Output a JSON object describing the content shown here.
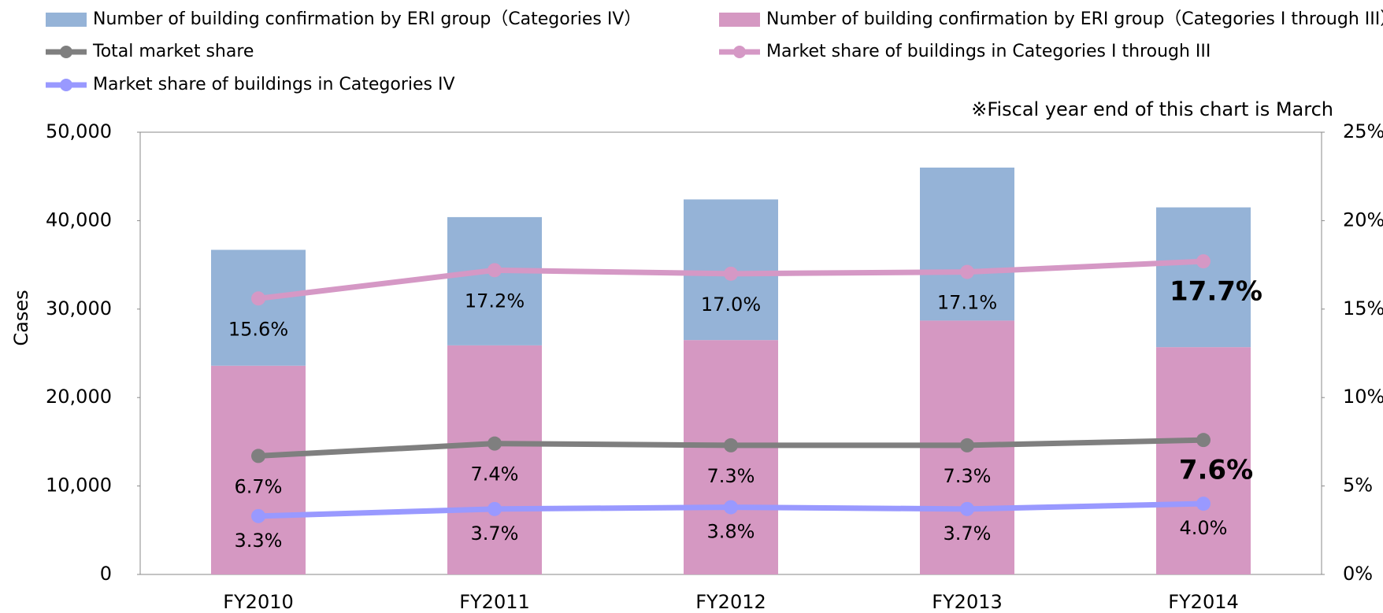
{
  "chart_data": {
    "type": "combo",
    "annotation": "※Fiscal year end of this chart is March",
    "ylabel": "Cases",
    "categories": [
      "FY2010",
      "FY2011",
      "FY2012",
      "FY2013",
      "FY2014"
    ],
    "series": [
      {
        "name": "Number of building confirmation by ERI group（Categories IV）",
        "type": "bar",
        "color": "#95b3d7",
        "values": [
          13100,
          14500,
          15900,
          17300,
          15800
        ]
      },
      {
        "name": "Number of building confirmation by ERI group（Categories I through III）",
        "type": "bar",
        "color": "#d598c2",
        "values": [
          23600,
          25900,
          26500,
          28700,
          25700
        ]
      },
      {
        "name": "Total market share",
        "type": "line",
        "axis": "y2",
        "color": "#7f7f7f",
        "values": [
          6.7,
          7.4,
          7.3,
          7.3,
          7.6
        ],
        "value_labels": [
          "6.7%",
          "7.4%",
          "7.3%",
          "7.3%",
          "7.6%"
        ]
      },
      {
        "name": "Market share of buildings in Categories I through III",
        "type": "line",
        "axis": "y2",
        "color": "#d598c5",
        "values": [
          15.6,
          17.2,
          17.0,
          17.1,
          17.7
        ],
        "value_labels": [
          "15.6%",
          "17.2%",
          "17.0%",
          "17.1%",
          "17.7%"
        ]
      },
      {
        "name": "Market share of buildings in Categories IV",
        "type": "line",
        "axis": "y2",
        "color": "#9999ff",
        "values": [
          3.3,
          3.7,
          3.8,
          3.7,
          4.0
        ],
        "value_labels": [
          "3.3%",
          "3.7%",
          "3.8%",
          "3.7%",
          "4.0%"
        ]
      }
    ],
    "stacked": true,
    "ylim": [
      0,
      50000
    ],
    "yticks": [
      0,
      {
        "value": 10000,
        "label": "10,000"
      },
      {
        "value": 20000,
        "label": "20,000"
      },
      {
        "value": 30000,
        "label": "30,000"
      },
      {
        "value": 40000,
        "label": "40,000"
      },
      {
        "value": 50000,
        "label": "50,000"
      }
    ],
    "y2lim": [
      0,
      25
    ],
    "y2ticks": [
      {
        "value": 0,
        "label": "0%"
      },
      {
        "value": 5,
        "label": "5%"
      },
      {
        "value": 10,
        "label": "10%"
      },
      {
        "value": 15,
        "label": "15%"
      },
      {
        "value": 20,
        "label": "20%"
      },
      {
        "value": 25,
        "label": "25%"
      }
    ],
    "grid": false
  }
}
